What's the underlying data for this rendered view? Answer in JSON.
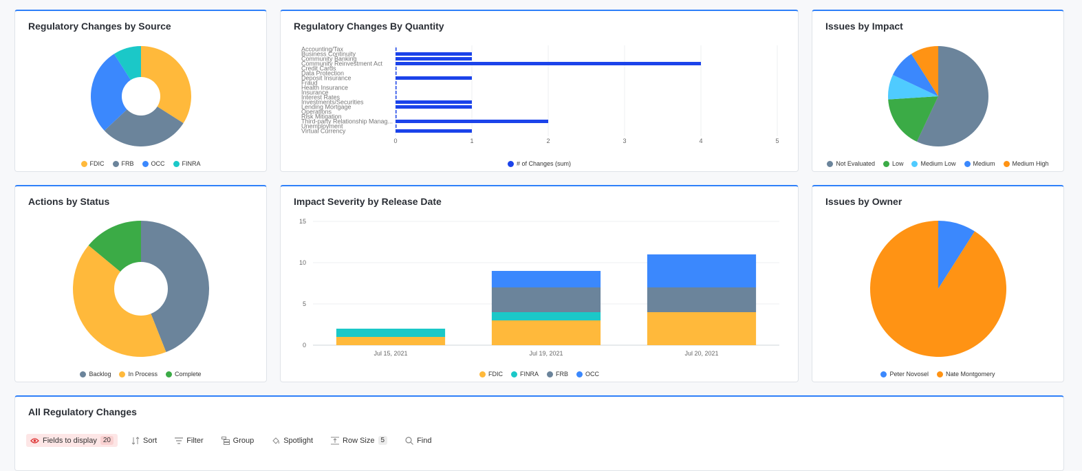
{
  "colors": {
    "fdic": "#ffb93b",
    "frb": "#6b849b",
    "occ": "#3b88fd",
    "finra": "#1bc8c8",
    "blue_bar": "#1b43ea",
    "green": "#3bab46",
    "light_blue": "#4fcbff",
    "orange": "#ff9314",
    "accent": "#2d7ff9"
  },
  "source_card": {
    "title": "Regulatory Changes by Source",
    "chart_data": {
      "type": "pie",
      "donut": true,
      "slices": [
        {
          "label": "FDIC",
          "value": 34,
          "color": "#ffb93b"
        },
        {
          "label": "FRB",
          "value": 29,
          "color": "#6b849b"
        },
        {
          "label": "OCC",
          "value": 28,
          "color": "#3b88fd"
        },
        {
          "label": "FINRA",
          "value": 9,
          "color": "#1bc8c8"
        }
      ]
    }
  },
  "quantity_card": {
    "title": "Regulatory Changes By Quantity",
    "chart_data": {
      "type": "bar",
      "orientation": "horizontal",
      "categories": [
        "Accounting/Tax",
        "Business Continuity",
        "Community Banking",
        "Community Reinvestment Act",
        "Credit Cards",
        "Data Protection",
        "Deposit Insurance",
        "Fraud",
        "Health Insurance",
        "Insurance",
        "Interest Rates",
        "Investments/Securities",
        "Lending Mortgage",
        "Operations",
        "Risk Mitigation",
        "Third-party Relationship Manag...",
        "Unemployment",
        "Virtual Currency"
      ],
      "values": [
        0,
        1,
        1,
        4,
        0,
        0,
        1,
        0,
        0,
        0,
        0,
        1,
        1,
        0,
        0,
        2,
        0,
        1
      ],
      "xlim": [
        0,
        5
      ],
      "ticks": [
        "0",
        "1",
        "2",
        "3",
        "4",
        "5"
      ],
      "legend": "# of Changes (sum)"
    }
  },
  "impact_card": {
    "title": "Issues by Impact",
    "chart_data": {
      "type": "pie",
      "slices": [
        {
          "label": "Not Evaluated",
          "value": 57,
          "color": "#6b849b"
        },
        {
          "label": "Low",
          "value": 17,
          "color": "#3bab46"
        },
        {
          "label": "Medium Low",
          "value": 8,
          "color": "#4fcbff"
        },
        {
          "label": "Medium",
          "value": 9,
          "color": "#3b88fd"
        },
        {
          "label": "Medium High",
          "value": 9,
          "color": "#ff9314"
        }
      ]
    }
  },
  "actions_card": {
    "title": "Actions by Status",
    "chart_data": {
      "type": "pie",
      "donut": true,
      "slices": [
        {
          "label": "Backlog",
          "value": 44,
          "color": "#6b849b"
        },
        {
          "label": "In Process",
          "value": 42,
          "color": "#ffb93b"
        },
        {
          "label": "Complete",
          "value": 14,
          "color": "#3bab46"
        }
      ]
    }
  },
  "severity_card": {
    "title": "Impact Severity by Release Date",
    "chart_data": {
      "type": "bar",
      "stacked": true,
      "categories": [
        "Jul 15, 2021",
        "Jul 19, 2021",
        "Jul 20, 2021"
      ],
      "series": [
        {
          "name": "FDIC",
          "color": "#ffb93b",
          "values": [
            1,
            3,
            4
          ]
        },
        {
          "name": "FINRA",
          "color": "#1bc8c8",
          "values": [
            1,
            1,
            0
          ]
        },
        {
          "name": "FRB",
          "color": "#6b849b",
          "values": [
            0,
            3,
            3
          ]
        },
        {
          "name": "OCC",
          "color": "#3b88fd",
          "values": [
            0,
            2,
            4
          ]
        }
      ],
      "ylim": [
        0,
        15
      ],
      "yticks": [
        "0",
        "5",
        "10",
        "15"
      ]
    }
  },
  "owner_card": {
    "title": "Issues by Owner",
    "chart_data": {
      "type": "pie",
      "slices": [
        {
          "label": "Peter Novosel",
          "value": 9,
          "color": "#3b88fd"
        },
        {
          "label": "Nate Montgomery",
          "value": 91,
          "color": "#ff9314"
        }
      ]
    }
  },
  "all_changes": {
    "title": "All Regulatory Changes",
    "toolbar": {
      "fields_label": "Fields to display",
      "fields_count": "20",
      "sort_label": "Sort",
      "filter_label": "Filter",
      "group_label": "Group",
      "spotlight_label": "Spotlight",
      "row_size_label": "Row Size",
      "row_size_value": "5",
      "find_label": "Find"
    }
  }
}
